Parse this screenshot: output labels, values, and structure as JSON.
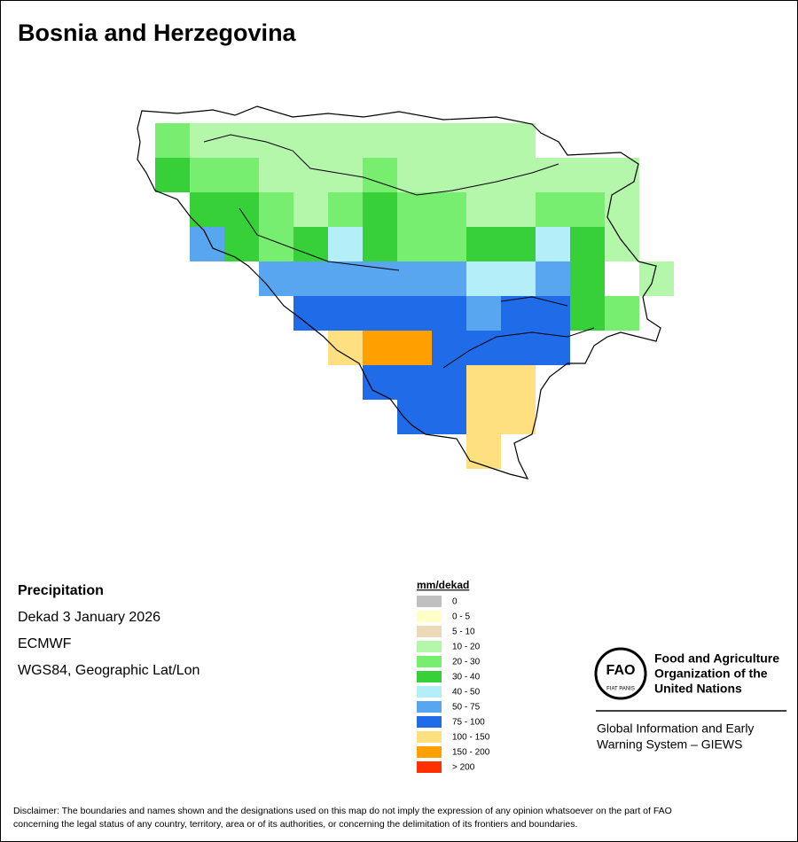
{
  "title": "Bosnia and Herzegovina",
  "info": {
    "heading": "Precipitation",
    "lines": [
      "Dekad 3 January 2026",
      "ECMWF",
      "WGS84, Geographic Lat/Lon"
    ]
  },
  "legend": {
    "title": "mm/dekad",
    "items": [
      {
        "label": "0",
        "color": "#c0c0c0"
      },
      {
        "label": "0 - 5",
        "color": "#ffffc8"
      },
      {
        "label": "5 - 10",
        "color": "#ecd9b8"
      },
      {
        "label": "10 - 20",
        "color": "#b4f7aa"
      },
      {
        "label": "20 - 30",
        "color": "#78ee70"
      },
      {
        "label": "30 - 40",
        "color": "#38d038"
      },
      {
        "label": "40 - 50",
        "color": "#b4eef8"
      },
      {
        "label": "50 - 75",
        "color": "#58a6f0"
      },
      {
        "label": "75 - 100",
        "color": "#206ce8"
      },
      {
        "label": "100 - 150",
        "color": "#ffe080"
      },
      {
        "label": "150 - 200",
        "color": "#ffa000"
      },
      {
        "label": "> 200",
        "color": "#ff3000"
      }
    ]
  },
  "organization": {
    "logo_text": "FAO",
    "motto": "FIAT PANIS",
    "name": [
      "Food and Agriculture",
      "Organization of the",
      "United Nations"
    ],
    "program": [
      "Global Information and Early",
      "Warning System – GIEWS"
    ]
  },
  "disclaimer": [
    "Disclaimer: The boundaries and names shown and the designations used on this map do not imply the expression of any opinion whatsoever on the part of FAO",
    "concerning the legal status of any country, territory, area or of its authorities, or concerning the delimitation of its frontiers and boundaries."
  ]
}
